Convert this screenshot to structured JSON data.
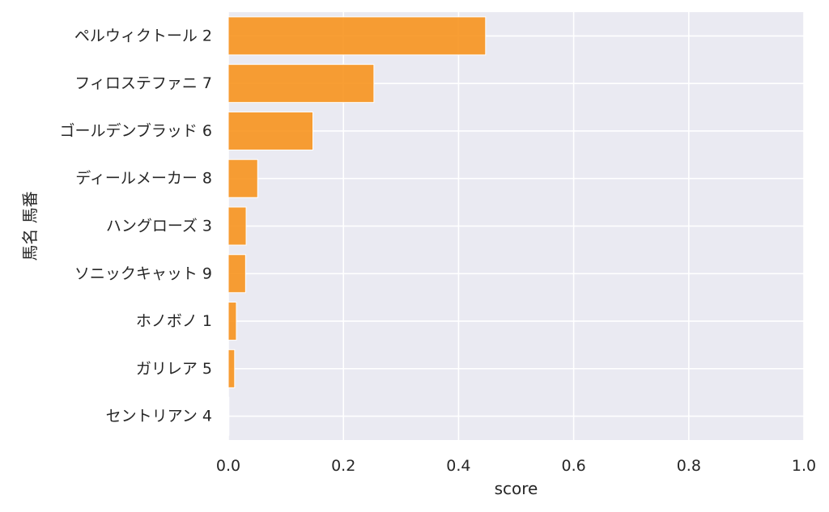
{
  "chart_data": {
    "type": "bar",
    "orientation": "horizontal",
    "categories": [
      "ペルウィクトール 2",
      "フィロステファニ 7",
      "ゴールデンブラッド 6",
      "ディールメーカー 8",
      "ハングローズ 3",
      "ソニックキャット 9",
      "ホノボノ 1",
      "ガリレア 5",
      "セントリアン 4"
    ],
    "values": [
      0.447,
      0.253,
      0.147,
      0.051,
      0.031,
      0.03,
      0.014,
      0.011,
      0.001
    ],
    "title": "",
    "xlabel": "score",
    "ylabel": "馬名 馬番",
    "xlim": [
      0,
      1.0
    ],
    "xticks": [
      0.0,
      0.2,
      0.4,
      0.6,
      0.8,
      1.0
    ],
    "xtick_labels": [
      "0.0",
      "0.2",
      "0.4",
      "0.6",
      "0.8",
      "1.0"
    ],
    "grid": true,
    "colors": {
      "bar": "#f7931e",
      "bar_edge": "#ffffff",
      "plot_background": "#eaeaf2",
      "grid": "#ffffff"
    }
  }
}
